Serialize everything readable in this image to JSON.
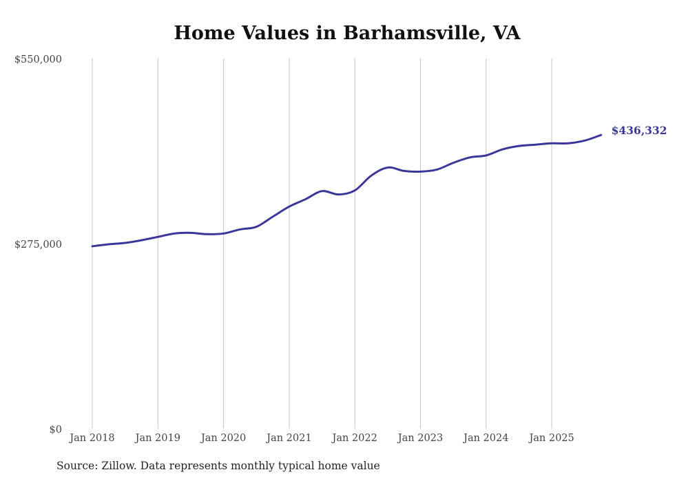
{
  "chart_data": {
    "type": "line",
    "title": "Home Values in Barhamsville, VA",
    "source": "Source: Zillow. Data represents monthly typical home value",
    "xlabel": "",
    "ylabel": "",
    "ylim": [
      0,
      550000
    ],
    "xlim": [
      2018.0,
      2025.75
    ],
    "y_ticks": [
      {
        "value": 0,
        "label": "$0"
      },
      {
        "value": 275000,
        "label": "$275,000"
      },
      {
        "value": 550000,
        "label": "$550,000"
      }
    ],
    "x_ticks": [
      {
        "value": 2018,
        "label": "Jan 2018"
      },
      {
        "value": 2019,
        "label": "Jan 2019"
      },
      {
        "value": 2020,
        "label": "Jan 2020"
      },
      {
        "value": 2021,
        "label": "Jan 2021"
      },
      {
        "value": 2022,
        "label": "Jan 2022"
      },
      {
        "value": 2023,
        "label": "Jan 2023"
      },
      {
        "value": 2024,
        "label": "Jan 2024"
      },
      {
        "value": 2025,
        "label": "Jan 2025"
      }
    ],
    "grid": "vertical",
    "color": "#3b3699",
    "end_label": "$436,332",
    "series": [
      {
        "name": "Typical home value",
        "x": [
          2018.0,
          2018.25,
          2018.5,
          2018.75,
          2019.0,
          2019.25,
          2019.5,
          2019.75,
          2020.0,
          2020.25,
          2020.5,
          2020.75,
          2021.0,
          2021.25,
          2021.5,
          2021.75,
          2022.0,
          2022.25,
          2022.5,
          2022.75,
          2023.0,
          2023.25,
          2023.5,
          2023.75,
          2024.0,
          2024.25,
          2024.5,
          2024.75,
          2025.0,
          2025.25,
          2025.5,
          2025.75
        ],
        "y": [
          271000,
          274000,
          276000,
          280000,
          285000,
          290000,
          291000,
          289000,
          290000,
          296000,
          300000,
          315000,
          330000,
          341000,
          353000,
          348000,
          354000,
          376000,
          388000,
          383000,
          382000,
          385000,
          395000,
          403000,
          406000,
          415000,
          420000,
          422000,
          424000,
          424000,
          428000,
          436332
        ]
      }
    ]
  }
}
